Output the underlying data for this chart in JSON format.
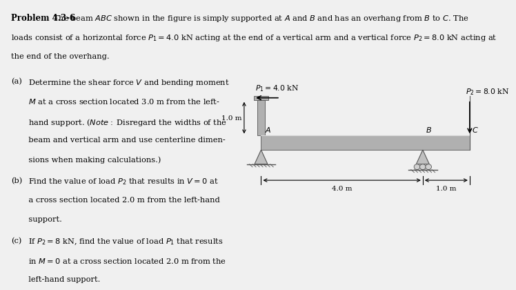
{
  "bg_color": "#f0f0f0",
  "white": "#ffffff",
  "beam_color": "#b0b0b0",
  "beam_edge": "#555555",
  "label_P1": "$P_1 = 4.0$ kN",
  "label_P2": "$P_2 = 8.0$ kN",
  "label_1m": "1.0 m",
  "label_4m": "4.0 m",
  "label_1m_right": "1.0 m",
  "label_A": "$A$",
  "label_B": "$B$",
  "label_C": "$C$",
  "title_bold": "Problem 4.3-6",
  "title_rest": "  The beam $ABC$ shown in the figure is simply supported at $A$ and $B$ and has an overhang from $B$ to $C$. The",
  "line2": "loads consist of a horizontal force $P_1 = 4.0$ kN acting at the end of a vertical arm and a vertical force $P_2 = 8.0$ kN acting at",
  "line3": "the end of the overhang.",
  "part_a_label": "(a)",
  "part_a_text": "Determine the shear force $V$ and bending moment",
  "part_a_2": "       $M$ at a cross section located 3.0 m from the left-",
  "part_a_3": "       hand support. ($Note:$ Disregard the widths of the",
  "part_a_4": "       beam and vertical arm and use centerline dimen-",
  "part_a_5": "       sions when making calculations.)",
  "part_b_label": "(b)",
  "part_b_text": "Find the value of load $P_2$ that results in $V = 0$ at",
  "part_b_2": "       a cross section located 2.0 m from the left-hand",
  "part_b_3": "       support.",
  "part_c_label": "(c)",
  "part_c_text": "If $P_2 = 8$ kN, find the value of load $P_1$ that results",
  "part_c_2": "       in $M = 0$ at a cross section located 2.0 m from the",
  "part_c_3": "       left-hand support."
}
